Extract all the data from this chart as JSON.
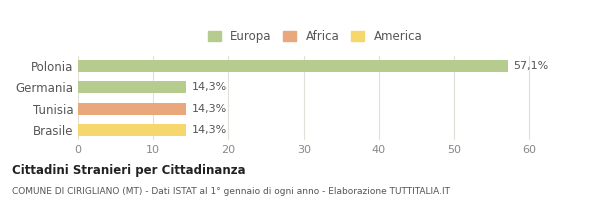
{
  "categories": [
    "Polonia",
    "Germania",
    "Tunisia",
    "Brasile"
  ],
  "values": [
    57.1,
    14.3,
    14.3,
    14.3
  ],
  "labels": [
    "57,1%",
    "14,3%",
    "14,3%",
    "14,3%"
  ],
  "colors": [
    "#b5cc8e",
    "#b5cc8e",
    "#e8a87c",
    "#f5d76e"
  ],
  "legend": [
    {
      "label": "Europa",
      "color": "#b5cc8e"
    },
    {
      "label": "Africa",
      "color": "#e8a87c"
    },
    {
      "label": "America",
      "color": "#f5d76e"
    }
  ],
  "xlim": [
    0,
    63
  ],
  "xticks": [
    0,
    10,
    20,
    30,
    40,
    50,
    60
  ],
  "title_bold": "Cittadini Stranieri per Cittadinanza",
  "subtitle": "COMUNE DI CIRIGLIANO (MT) - Dati ISTAT al 1° gennaio di ogni anno - Elaborazione TUTTITALIA.IT",
  "background_color": "#ffffff",
  "grid_color": "#e0e0d8"
}
